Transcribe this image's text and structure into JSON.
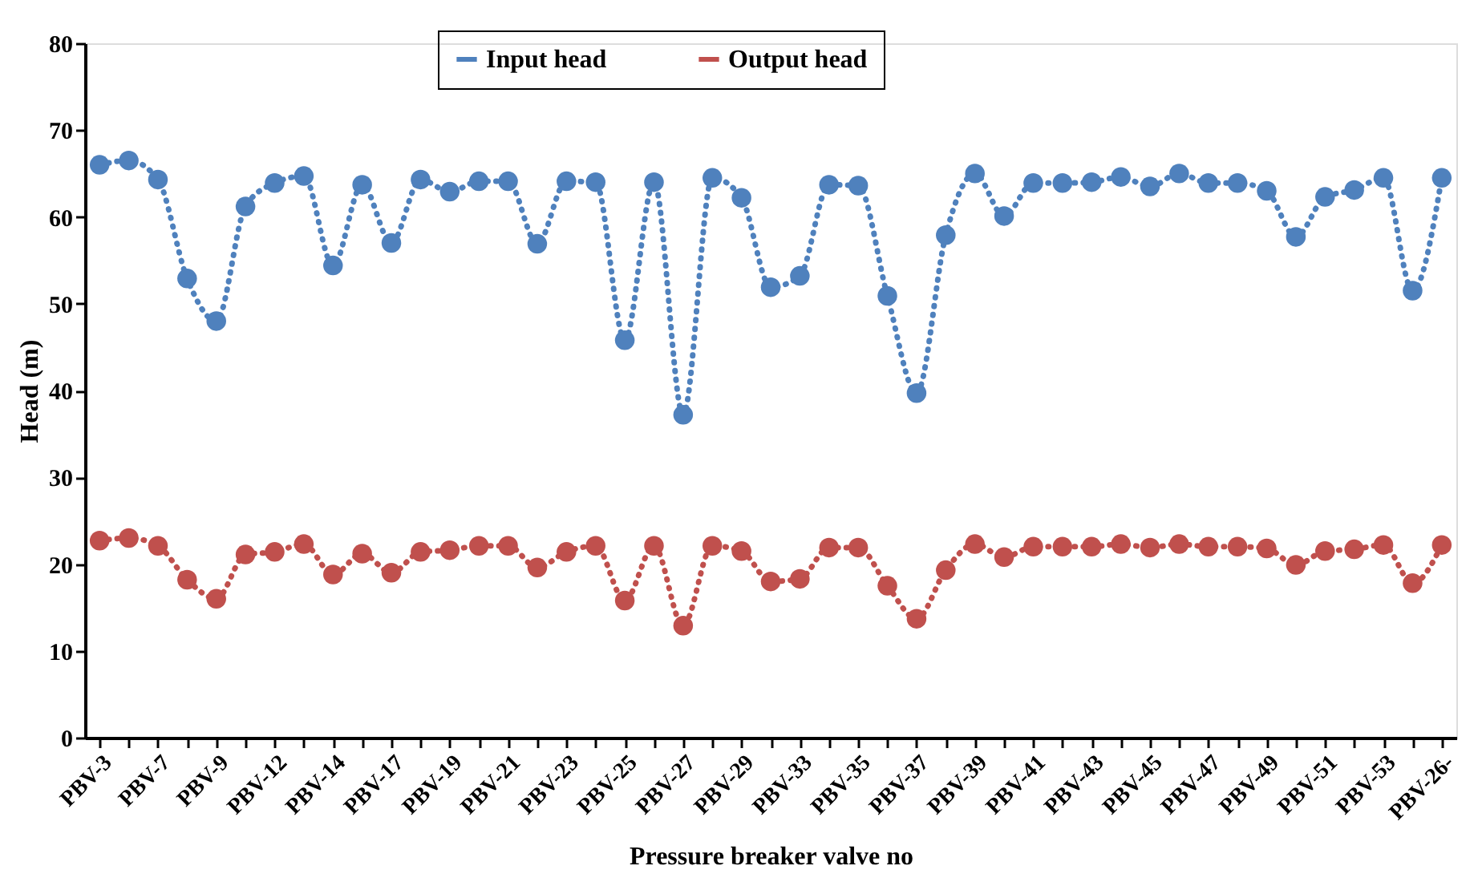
{
  "chart_data": {
    "type": "line",
    "xlabel": "Pressure breaker valve no",
    "ylabel": "Head (m)",
    "categories": [
      "PBV-3",
      null,
      "PBV-7",
      null,
      "PBV-9",
      null,
      "PBV-12",
      null,
      "PBV-14",
      null,
      "PBV-17",
      null,
      "PBV-19",
      null,
      "PBV-21",
      null,
      "PBV-23",
      null,
      "PBV-25",
      null,
      "PBV-27",
      null,
      "PBV-29",
      null,
      "PBV-33",
      null,
      "PBV-35",
      null,
      "PBV-37",
      null,
      "PBV-39",
      null,
      "PBV-41",
      null,
      "PBV-43",
      null,
      "PBV-45",
      null,
      "PBV-47",
      null,
      "PBV-49",
      null,
      "PBV-51",
      null,
      "PBV-53",
      null,
      "PBV-26-"
    ],
    "series": [
      {
        "name": "Input head",
        "color": "#4f81bd",
        "values": [
          66.0,
          66.5,
          64.3,
          52.9,
          48.0,
          61.2,
          63.9,
          64.7,
          54.4,
          63.7,
          57.0,
          64.3,
          62.9,
          64.1,
          64.1,
          56.9,
          64.1,
          64.0,
          45.8,
          64.0,
          37.2,
          64.5,
          62.2,
          51.9,
          53.2,
          63.7,
          63.6,
          50.9,
          39.7,
          57.9,
          65.0,
          60.1,
          63.9,
          63.9,
          64.0,
          64.6,
          63.5,
          65.0,
          63.9,
          63.9,
          63.0,
          57.7,
          62.3,
          63.1,
          64.5,
          51.5,
          64.5
        ]
      },
      {
        "name": "Output head",
        "color": "#c0504d",
        "values": [
          22.7,
          23.0,
          22.1,
          18.2,
          16.0,
          21.1,
          21.4,
          22.3,
          18.8,
          21.2,
          19.0,
          21.4,
          21.6,
          22.1,
          22.1,
          19.6,
          21.4,
          22.1,
          15.8,
          22.1,
          12.9,
          22.1,
          21.5,
          18.0,
          18.3,
          21.9,
          21.9,
          17.5,
          13.7,
          19.3,
          22.3,
          20.8,
          22.0,
          22.0,
          22.0,
          22.3,
          21.9,
          22.3,
          22.0,
          22.0,
          21.8,
          19.9,
          21.5,
          21.7,
          22.2,
          17.8,
          22.2
        ]
      }
    ],
    "ylim": [
      0,
      80
    ],
    "yticks": [
      0,
      10,
      20,
      30,
      40,
      50,
      60,
      70,
      80
    ],
    "grid": false,
    "legend": "top",
    "marker": "circle",
    "line_style": "dotted"
  }
}
